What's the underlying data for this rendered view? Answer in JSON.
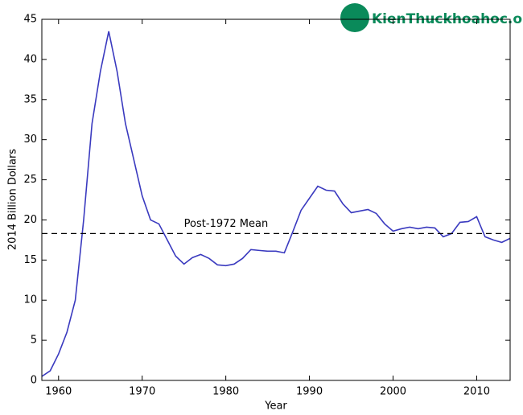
{
  "chart_data": {
    "type": "line",
    "x_label": "Year",
    "y_label": "2014 Billion Dollars",
    "x": [
      1958,
      1959,
      1960,
      1961,
      1962,
      1963,
      1964,
      1965,
      1966,
      1967,
      1968,
      1969,
      1970,
      1971,
      1972,
      1973,
      1974,
      1975,
      1976,
      1977,
      1978,
      1979,
      1980,
      1981,
      1982,
      1983,
      1984,
      1985,
      1986,
      1987,
      1988,
      1989,
      1990,
      1991,
      1992,
      1993,
      1994,
      1995,
      1996,
      1997,
      1998,
      1999,
      2000,
      2001,
      2002,
      2003,
      2004,
      2005,
      2006,
      2007,
      2008,
      2009,
      2010,
      2011,
      2012,
      2013,
      2014
    ],
    "series": [
      {
        "color": "#3a3abf",
        "values": [
          0.5,
          1.2,
          3.3,
          6,
          10,
          20,
          32,
          38.5,
          43.5,
          38.5,
          32,
          27.5,
          23,
          20,
          19.5,
          17.5,
          15.5,
          14.5,
          15.3,
          15.7,
          15.2,
          14.4,
          14.3,
          14.5,
          15.2,
          16.3,
          16.2,
          16.1,
          16.1,
          15.9,
          18.5,
          21.2,
          22.7,
          24.2,
          23.7,
          23.6,
          22,
          20.9,
          21.1,
          21.3,
          20.8,
          19.5,
          18.6,
          18.9,
          19.1,
          18.9,
          19.1,
          19,
          17.9,
          18.3,
          19.7,
          19.8,
          20.4,
          17.9,
          17.5,
          17.2,
          17.7
        ]
      }
    ],
    "reference_line": {
      "value": 18.3,
      "label": "Post-1972 Mean"
    },
    "xlim": [
      1958,
      2014
    ],
    "ylim": [
      0,
      45
    ],
    "xticks": [
      1960,
      1970,
      1980,
      1990,
      2000,
      2010
    ],
    "yticks": [
      0,
      5,
      10,
      15,
      20,
      25,
      30,
      35,
      40,
      45
    ],
    "watermark": "KienThuckhoahoc.org"
  }
}
